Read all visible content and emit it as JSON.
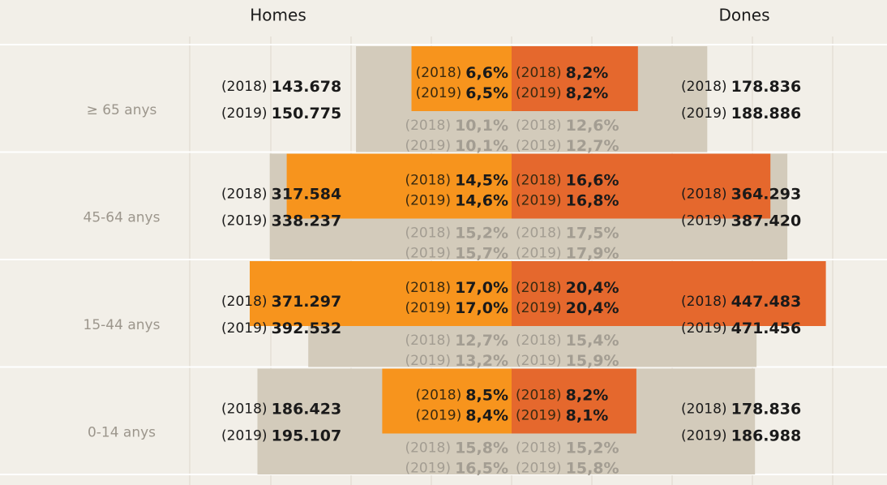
{
  "chart_data": {
    "type": "pyramid",
    "headers": {
      "men": "Homes",
      "women": "Dones"
    },
    "years": [
      "(2018)",
      "(2019)"
    ],
    "colors": {
      "men": "#f7941d",
      "women": "#e5682d",
      "reference": "#d3cbbb"
    },
    "groups": [
      {
        "label": "≥ 65 anys",
        "men": {
          "count": [
            143678,
            150775
          ],
          "count_labels": [
            "143.678",
            "150.775"
          ],
          "pct": [
            6.6,
            6.5
          ],
          "pct_labels": [
            "6,6%",
            "6,5%"
          ],
          "ref_pct": [
            10.1,
            10.1
          ],
          "ref_labels": [
            "10,1%",
            "10,1%"
          ]
        },
        "women": {
          "count": [
            178836,
            188886
          ],
          "count_labels": [
            "178.836",
            "188.886"
          ],
          "pct": [
            8.2,
            8.2
          ],
          "pct_labels": [
            "8,2%",
            "8,2%"
          ],
          "ref_pct": [
            12.6,
            12.7
          ],
          "ref_labels": [
            "12,6%",
            "12,7%"
          ]
        }
      },
      {
        "label": "45-64 anys",
        "men": {
          "count": [
            317584,
            338237
          ],
          "count_labels": [
            "317.584",
            "338.237"
          ],
          "pct": [
            14.5,
            14.6
          ],
          "pct_labels": [
            "14,5%",
            "14,6%"
          ],
          "ref_pct": [
            15.2,
            15.7
          ],
          "ref_labels": [
            "15,2%",
            "15,7%"
          ]
        },
        "women": {
          "count": [
            364293,
            387420
          ],
          "count_labels": [
            "364.293",
            "387.420"
          ],
          "pct": [
            16.6,
            16.8
          ],
          "pct_labels": [
            "16,6%",
            "16,8%"
          ],
          "ref_pct": [
            17.5,
            17.9
          ],
          "ref_labels": [
            "17,5%",
            "17,9%"
          ]
        }
      },
      {
        "label": "15-44 anys",
        "men": {
          "count": [
            371297,
            392532
          ],
          "count_labels": [
            "371.297",
            "392.532"
          ],
          "pct": [
            17.0,
            17.0
          ],
          "pct_labels": [
            "17,0%",
            "17,0%"
          ],
          "ref_pct": [
            12.7,
            13.2
          ],
          "ref_labels": [
            "12,7%",
            "13,2%"
          ]
        },
        "women": {
          "count": [
            447483,
            471456
          ],
          "count_labels": [
            "447.483",
            "471.456"
          ],
          "pct": [
            20.4,
            20.4
          ],
          "pct_labels": [
            "20,4%",
            "20,4%"
          ],
          "ref_pct": [
            15.4,
            15.9
          ],
          "ref_labels": [
            "15,4%",
            "15,9%"
          ]
        }
      },
      {
        "label": "0-14 anys",
        "men": {
          "count": [
            186423,
            195107
          ],
          "count_labels": [
            "186.423",
            "195.107"
          ],
          "pct": [
            8.5,
            8.4
          ],
          "pct_labels": [
            "8,5%",
            "8,4%"
          ],
          "ref_pct": [
            15.8,
            16.5
          ],
          "ref_labels": [
            "15,8%",
            "16,5%"
          ]
        },
        "women": {
          "count": [
            178836,
            186988
          ],
          "count_labels": [
            "178.836",
            "186.988"
          ],
          "pct": [
            8.2,
            8.1
          ],
          "pct_labels": [
            "8,2%",
            "8,1%"
          ],
          "ref_pct": [
            15.2,
            15.8
          ],
          "ref_labels": [
            "15,2%",
            "15,8%"
          ]
        }
      }
    ]
  }
}
